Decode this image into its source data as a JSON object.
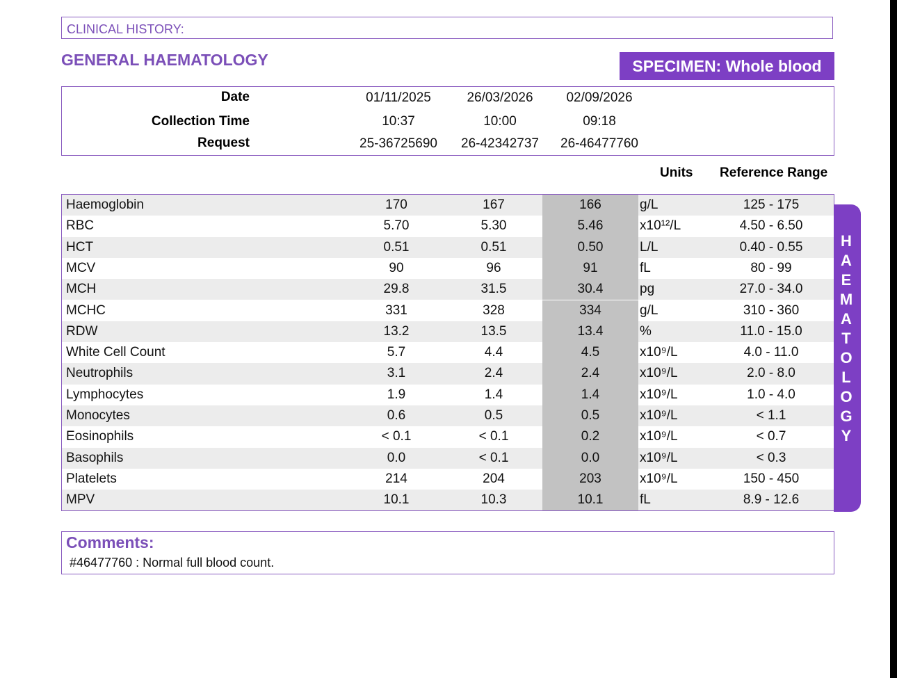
{
  "clinical_history_label": "CLINICAL HISTORY:",
  "section_title": "GENERAL HAEMATOLOGY",
  "specimen": "SPECIMEN: Whole blood",
  "header": {
    "date_label": "Date",
    "time_label": "Collection Time",
    "request_label": "Request",
    "dates": [
      "01/11/2025",
      "26/03/2026",
      "02/09/2026"
    ],
    "times": [
      "10:37",
      "10:00",
      "09:18"
    ],
    "requests": [
      "25-36725690",
      "26-42342737",
      "26-46477760"
    ]
  },
  "columns": {
    "units": "Units",
    "reference": "Reference Range"
  },
  "results": [
    {
      "name": "Haemoglobin",
      "v1": "170",
      "v2": "167",
      "v3": "166",
      "unit": "g/L",
      "ref": "125 - 175"
    },
    {
      "name": "RBC",
      "v1": "5.70",
      "v2": "5.30",
      "v3": "5.46",
      "unit": "x10¹²/L",
      "ref": "4.50 - 6.50"
    },
    {
      "name": "HCT",
      "v1": "0.51",
      "v2": "0.51",
      "v3": "0.50",
      "unit": "L/L",
      "ref": "0.40 - 0.55"
    },
    {
      "name": "MCV",
      "v1": "90",
      "v2": "96",
      "v3": "91",
      "unit": "fL",
      "ref": "80 - 99"
    },
    {
      "name": "MCH",
      "v1": "29.8",
      "v2": "31.5",
      "v3": "30.4",
      "unit": "pg",
      "ref": "27.0 - 34.0"
    },
    {
      "name": "MCHC",
      "v1": "331",
      "v2": "328",
      "v3": "334",
      "unit": "g/L",
      "ref": "310 - 360"
    },
    {
      "name": "RDW",
      "v1": "13.2",
      "v2": "13.5",
      "v3": "13.4",
      "unit": "%",
      "ref": "11.0 - 15.0"
    },
    {
      "name": "White Cell Count",
      "v1": "5.7",
      "v2": "4.4",
      "v3": "4.5",
      "unit": "x10⁹/L",
      "ref": "4.0 - 11.0"
    },
    {
      "name": "Neutrophils",
      "v1": "3.1",
      "v2": "2.4",
      "v3": "2.4",
      "unit": "x10⁹/L",
      "ref": "2.0 - 8.0"
    },
    {
      "name": "Lymphocytes",
      "v1": "1.9",
      "v2": "1.4",
      "v3": "1.4",
      "unit": "x10⁹/L",
      "ref": "1.0 - 4.0"
    },
    {
      "name": "Monocytes",
      "v1": "0.6",
      "v2": "0.5",
      "v3": "0.5",
      "unit": "x10⁹/L",
      "ref": "< 1.1"
    },
    {
      "name": "Eosinophils",
      "v1": "< 0.1",
      "v2": "< 0.1",
      "v3": "0.2",
      "unit": "x10⁹/L",
      "ref": "< 0.7"
    },
    {
      "name": "Basophils",
      "v1": "0.0",
      "v2": "< 0.1",
      "v3": "0.0",
      "unit": "x10⁹/L",
      "ref": "< 0.3"
    },
    {
      "name": "Platelets",
      "v1": "214",
      "v2": "204",
      "v3": "203",
      "unit": "x10⁹/L",
      "ref": "150 - 450"
    },
    {
      "name": "MPV",
      "v1": "10.1",
      "v2": "10.3",
      "v3": "10.1",
      "unit": "fL",
      "ref": "8.9 - 12.6"
    }
  ],
  "side_tab": "HAEMATOLOGY",
  "comments": {
    "title": "Comments:",
    "text": "#46477760 : Normal full blood count."
  },
  "colors": {
    "accent": "#7d3fc4",
    "heading": "#7b4fb8",
    "latest_column": "#c2c2c2",
    "alt_row": "#ececec"
  }
}
